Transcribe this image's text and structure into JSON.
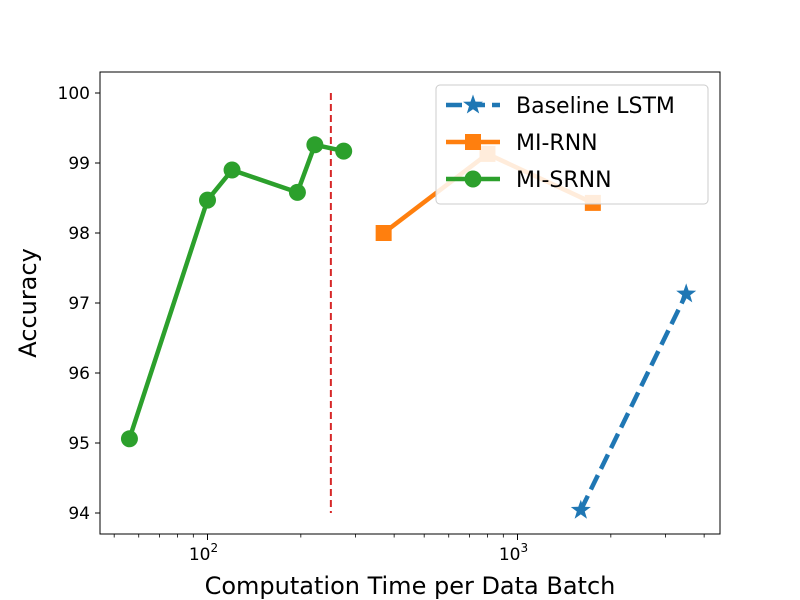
{
  "chart_data": {
    "type": "line",
    "title": "",
    "xlabel": "Computation Time per Data Batch",
    "ylabel": "Accuracy",
    "xscale": "log",
    "xlim": [
      45,
      4500
    ],
    "ylim": [
      93.7,
      100.3
    ],
    "yticks": [
      94,
      95,
      96,
      97,
      98,
      99,
      100
    ],
    "xticks": [
      {
        "value": 100,
        "base": "10",
        "exp": "2"
      },
      {
        "value": 1000,
        "base": "10",
        "exp": "3"
      }
    ],
    "grid": false,
    "legend": "top-right",
    "series": [
      {
        "name": "Baseline LSTM",
        "color": "#1f77b4",
        "linestyle": "dashed",
        "marker": "star",
        "x": [
          1600,
          3500
        ],
        "y": [
          94.04,
          97.13
        ]
      },
      {
        "name": "MI-RNN",
        "color": "#ff7f0e",
        "linestyle": "solid",
        "marker": "square",
        "x": [
          370,
          800,
          1750
        ],
        "y": [
          98.0,
          99.13,
          98.43
        ]
      },
      {
        "name": "MI-SRNN",
        "color": "#2ca02c",
        "linestyle": "solid",
        "marker": "circle",
        "x": [
          56,
          100,
          120,
          195,
          222,
          275
        ],
        "y": [
          95.06,
          98.47,
          98.9,
          98.58,
          99.26,
          99.17
        ]
      }
    ],
    "annotations": [
      {
        "type": "vline",
        "x": 250,
        "y_from": 94,
        "y_to": 100,
        "color": "#d62728",
        "linestyle": "dashed"
      }
    ]
  }
}
